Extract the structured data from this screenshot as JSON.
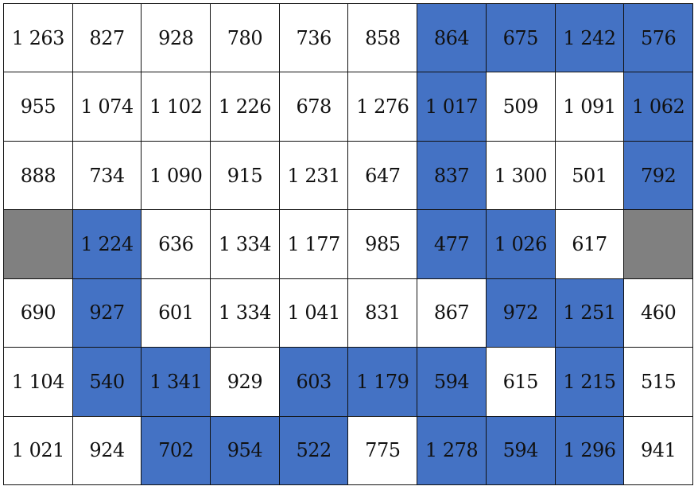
{
  "colors": {
    "white": "#ffffff",
    "blue": "#4472c4",
    "gray": "#808080",
    "border": "#111111"
  },
  "rows": [
    [
      {
        "v": "1 263",
        "c": "white"
      },
      {
        "v": "827",
        "c": "white"
      },
      {
        "v": "928",
        "c": "white"
      },
      {
        "v": "780",
        "c": "white"
      },
      {
        "v": "736",
        "c": "white"
      },
      {
        "v": "858",
        "c": "white"
      },
      {
        "v": "864",
        "c": "blue"
      },
      {
        "v": "675",
        "c": "blue"
      },
      {
        "v": "1 242",
        "c": "blue"
      },
      {
        "v": "576",
        "c": "blue"
      }
    ],
    [
      {
        "v": "955",
        "c": "white"
      },
      {
        "v": "1 074",
        "c": "white"
      },
      {
        "v": "1 102",
        "c": "white"
      },
      {
        "v": "1 226",
        "c": "white"
      },
      {
        "v": "678",
        "c": "white"
      },
      {
        "v": "1 276",
        "c": "white"
      },
      {
        "v": "1 017",
        "c": "blue"
      },
      {
        "v": "509",
        "c": "white"
      },
      {
        "v": "1 091",
        "c": "white"
      },
      {
        "v": "1 062",
        "c": "blue"
      }
    ],
    [
      {
        "v": "888",
        "c": "white"
      },
      {
        "v": "734",
        "c": "white"
      },
      {
        "v": "1 090",
        "c": "white"
      },
      {
        "v": "915",
        "c": "white"
      },
      {
        "v": "1 231",
        "c": "white"
      },
      {
        "v": "647",
        "c": "white"
      },
      {
        "v": "837",
        "c": "blue"
      },
      {
        "v": "1 300",
        "c": "white"
      },
      {
        "v": "501",
        "c": "white"
      },
      {
        "v": "792",
        "c": "blue"
      }
    ],
    [
      {
        "v": "",
        "c": "gray"
      },
      {
        "v": "1 224",
        "c": "blue"
      },
      {
        "v": "636",
        "c": "white"
      },
      {
        "v": "1 334",
        "c": "white"
      },
      {
        "v": "1 177",
        "c": "white"
      },
      {
        "v": "985",
        "c": "white"
      },
      {
        "v": "477",
        "c": "blue"
      },
      {
        "v": "1 026",
        "c": "blue"
      },
      {
        "v": "617",
        "c": "white"
      },
      {
        "v": "",
        "c": "gray"
      }
    ],
    [
      {
        "v": "690",
        "c": "white"
      },
      {
        "v": "927",
        "c": "blue"
      },
      {
        "v": "601",
        "c": "white"
      },
      {
        "v": "1 334",
        "c": "white"
      },
      {
        "v": "1 041",
        "c": "white"
      },
      {
        "v": "831",
        "c": "white"
      },
      {
        "v": "867",
        "c": "white"
      },
      {
        "v": "972",
        "c": "blue"
      },
      {
        "v": "1 251",
        "c": "blue"
      },
      {
        "v": "460",
        "c": "white"
      }
    ],
    [
      {
        "v": "1 104",
        "c": "white"
      },
      {
        "v": "540",
        "c": "blue"
      },
      {
        "v": "1 341",
        "c": "blue"
      },
      {
        "v": "929",
        "c": "white"
      },
      {
        "v": "603",
        "c": "blue"
      },
      {
        "v": "1 179",
        "c": "blue"
      },
      {
        "v": "594",
        "c": "blue"
      },
      {
        "v": "615",
        "c": "white"
      },
      {
        "v": "1 215",
        "c": "blue"
      },
      {
        "v": "515",
        "c": "white"
      }
    ],
    [
      {
        "v": "1 021",
        "c": "white"
      },
      {
        "v": "924",
        "c": "white"
      },
      {
        "v": "702",
        "c": "blue"
      },
      {
        "v": "954",
        "c": "blue"
      },
      {
        "v": "522",
        "c": "blue"
      },
      {
        "v": "775",
        "c": "white"
      },
      {
        "v": "1 278",
        "c": "blue"
      },
      {
        "v": "594",
        "c": "blue"
      },
      {
        "v": "1 296",
        "c": "blue"
      },
      {
        "v": "941",
        "c": "white"
      }
    ]
  ]
}
